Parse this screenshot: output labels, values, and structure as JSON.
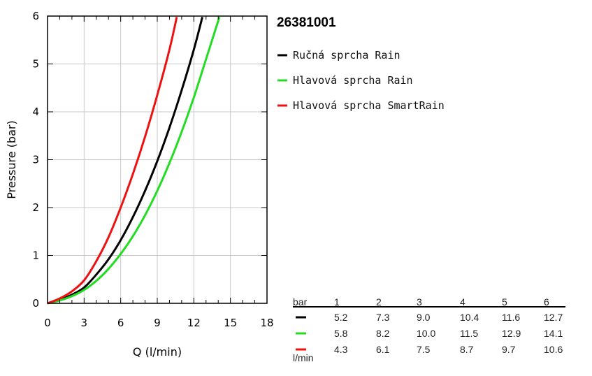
{
  "chart_data": {
    "type": "line",
    "title": "26381001",
    "xlabel": "Q (l/min)",
    "ylabel": "Pressure (bar)",
    "xlim": [
      0,
      18
    ],
    "ylim": [
      0,
      6
    ],
    "x_ticks": [
      0,
      3,
      6,
      9,
      12,
      15,
      18
    ],
    "y_ticks": [
      0,
      1,
      2,
      3,
      4,
      5,
      6
    ],
    "grid": true,
    "legend_position": "right",
    "series": [
      {
        "name": "Ručná sprcha Rain",
        "color": "#000000",
        "x": [
          0,
          1,
          2,
          3,
          4,
          5,
          6,
          7,
          8,
          9,
          10,
          11,
          12,
          12.7
        ],
        "y": [
          0,
          0.07,
          0.18,
          0.33,
          0.6,
          0.92,
          1.32,
          1.8,
          2.35,
          2.97,
          3.67,
          4.45,
          5.3,
          5.98
        ]
      },
      {
        "name": "Hlavová sprcha Rain",
        "color": "#22dd22",
        "x": [
          0,
          1,
          2,
          3,
          4,
          5,
          6,
          7,
          8,
          9,
          10,
          11,
          12,
          13,
          14.1
        ],
        "y": [
          0,
          0.06,
          0.15,
          0.28,
          0.47,
          0.72,
          1.03,
          1.4,
          1.84,
          2.35,
          2.93,
          3.58,
          4.3,
          5.1,
          5.98
        ]
      },
      {
        "name": "Hlavová sprcha SmartRain",
        "color": "#ee1111",
        "x": [
          0,
          1,
          2,
          3,
          4,
          5,
          6,
          7,
          8,
          9,
          10,
          10.6
        ],
        "y": [
          0,
          0.1,
          0.25,
          0.48,
          0.88,
          1.38,
          2.0,
          2.7,
          3.48,
          4.35,
          5.3,
          5.98
        ]
      }
    ]
  },
  "table": {
    "header_label": "bar",
    "unit_label": "l/min",
    "columns": [
      "1",
      "2",
      "3",
      "4",
      "5",
      "6"
    ],
    "rows": [
      {
        "color": "#000000",
        "values": [
          "5.2",
          "7.3",
          "9.0",
          "10.4",
          "11.6",
          "12.7"
        ]
      },
      {
        "color": "#22dd22",
        "values": [
          "5.8",
          "8.2",
          "10.0",
          "11.5",
          "12.9",
          "14.1"
        ]
      },
      {
        "color": "#ee1111",
        "values": [
          "4.3",
          "6.1",
          "7.5",
          "8.7",
          "9.7",
          "10.6"
        ]
      }
    ]
  }
}
